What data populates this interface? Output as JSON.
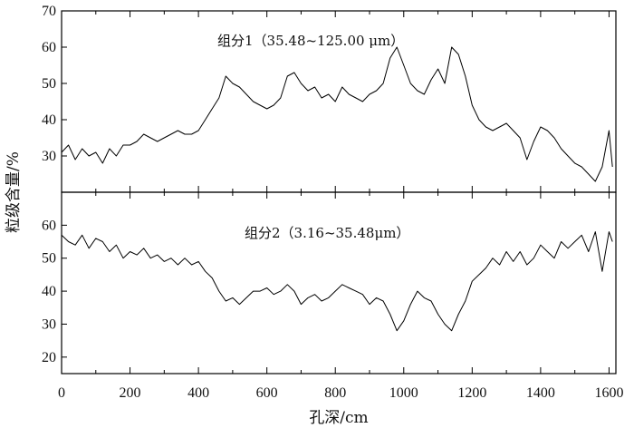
{
  "chart_data": [
    {
      "type": "line",
      "label": "组分1（35.48~125.00 μm）",
      "xlabel": "孔深/cm",
      "ylabel": "粒级含量/%",
      "xlim": [
        0,
        1620
      ],
      "ylim": [
        20,
        70
      ],
      "xticks": [
        0,
        200,
        400,
        600,
        800,
        1000,
        1200,
        1400,
        1600
      ],
      "yticks": [
        20,
        30,
        40,
        50,
        60,
        70
      ],
      "ytick_labels_shown": [
        "30",
        "40",
        "50",
        "60",
        "70"
      ],
      "x": [
        0,
        20,
        40,
        60,
        80,
        100,
        120,
        140,
        160,
        180,
        200,
        220,
        240,
        260,
        280,
        300,
        320,
        340,
        360,
        380,
        400,
        420,
        440,
        460,
        480,
        500,
        520,
        540,
        560,
        580,
        600,
        620,
        640,
        660,
        680,
        700,
        720,
        740,
        760,
        780,
        800,
        820,
        840,
        860,
        880,
        900,
        920,
        940,
        960,
        980,
        1000,
        1020,
        1040,
        1060,
        1080,
        1100,
        1120,
        1140,
        1160,
        1180,
        1200,
        1220,
        1240,
        1260,
        1280,
        1300,
        1320,
        1340,
        1360,
        1380,
        1400,
        1420,
        1440,
        1460,
        1480,
        1500,
        1520,
        1540,
        1560,
        1580,
        1600,
        1610
      ],
      "y": [
        31,
        33,
        29,
        32,
        30,
        31,
        28,
        32,
        30,
        33,
        33,
        34,
        36,
        35,
        34,
        35,
        36,
        37,
        36,
        36,
        37,
        40,
        43,
        46,
        52,
        50,
        49,
        47,
        45,
        44,
        43,
        44,
        46,
        52,
        53,
        50,
        48,
        49,
        46,
        47,
        45,
        49,
        47,
        46,
        45,
        47,
        48,
        50,
        57,
        60,
        55,
        50,
        48,
        47,
        51,
        54,
        50,
        60,
        58,
        52,
        44,
        40,
        38,
        37,
        38,
        39,
        37,
        35,
        29,
        34,
        38,
        37,
        35,
        32,
        30,
        28,
        27,
        25,
        23,
        27,
        37,
        27
      ]
    },
    {
      "type": "line",
      "label": "组分2（3.16~35.48μm）",
      "xlabel": "孔深/cm",
      "ylabel": "粒级含量/%",
      "xlim": [
        0,
        1620
      ],
      "ylim": [
        15,
        70
      ],
      "xticks": [
        0,
        200,
        400,
        600,
        800,
        1000,
        1200,
        1400,
        1600
      ],
      "yticks": [
        20,
        30,
        40,
        50,
        60,
        70
      ],
      "ytick_labels_shown": [
        "20",
        "30",
        "40",
        "50",
        "60"
      ],
      "x": [
        0,
        20,
        40,
        60,
        80,
        100,
        120,
        140,
        160,
        180,
        200,
        220,
        240,
        260,
        280,
        300,
        320,
        340,
        360,
        380,
        400,
        420,
        440,
        460,
        480,
        500,
        520,
        540,
        560,
        580,
        600,
        620,
        640,
        660,
        680,
        700,
        720,
        740,
        760,
        780,
        800,
        820,
        840,
        860,
        880,
        900,
        920,
        940,
        960,
        980,
        1000,
        1020,
        1040,
        1060,
        1080,
        1100,
        1120,
        1140,
        1160,
        1180,
        1200,
        1220,
        1240,
        1260,
        1280,
        1300,
        1320,
        1340,
        1360,
        1380,
        1400,
        1420,
        1440,
        1460,
        1480,
        1500,
        1520,
        1540,
        1560,
        1580,
        1600,
        1610
      ],
      "y": [
        57,
        55,
        54,
        57,
        53,
        56,
        55,
        52,
        54,
        50,
        52,
        51,
        53,
        50,
        51,
        49,
        50,
        48,
        50,
        48,
        49,
        46,
        44,
        40,
        37,
        38,
        36,
        38,
        40,
        40,
        41,
        39,
        40,
        42,
        40,
        36,
        38,
        39,
        37,
        38,
        40,
        42,
        41,
        40,
        39,
        36,
        38,
        37,
        33,
        28,
        31,
        36,
        40,
        38,
        37,
        33,
        30,
        28,
        33,
        37,
        43,
        45,
        47,
        50,
        48,
        52,
        49,
        52,
        48,
        50,
        54,
        52,
        50,
        55,
        53,
        55,
        57,
        52,
        58,
        46,
        58,
        55
      ]
    }
  ]
}
